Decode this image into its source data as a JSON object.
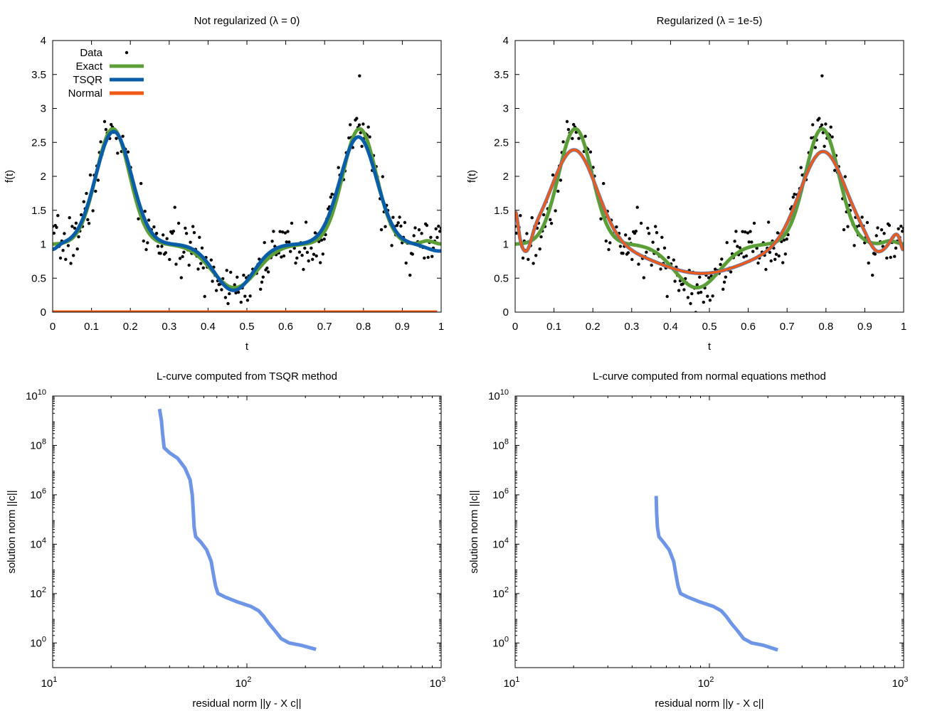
{
  "colors": {
    "data": "#000000",
    "exact": "#5c9e37",
    "tsqr": "#0a5ea8",
    "normal": "#f05a16",
    "lcurve": "#6f96e6",
    "regularized_outline": "#6878a8"
  },
  "chart_data": [
    {
      "id": "top-left",
      "type": "scatter",
      "title": "Not regularized (λ = 0)",
      "xlabel": "t",
      "ylabel": "f(t)",
      "xlim": [
        0,
        1
      ],
      "ylim": [
        0,
        4
      ],
      "xticks": [
        "0",
        "0.1",
        "0.2",
        "0.3",
        "0.4",
        "0.5",
        "0.6",
        "0.7",
        "0.8",
        "0.9",
        "1"
      ],
      "yticks": [
        "0",
        "0.5",
        "1",
        "1.5",
        "2",
        "2.5",
        "3",
        "3.5",
        "4"
      ],
      "legend": {
        "position": "top-left",
        "entries": [
          "Data",
          "Exact",
          "TSQR",
          "Normal"
        ]
      },
      "series": [
        {
          "name": "Data",
          "kind": "points",
          "model": "exact_plus_noise",
          "n": 300,
          "noise": 0.18,
          "seed": 7,
          "outlier": {
            "x": 0.79,
            "y": 3.48
          }
        },
        {
          "name": "Exact",
          "kind": "line",
          "model": "exact",
          "color_key": "exact"
        },
        {
          "name": "TSQR",
          "kind": "line",
          "model": "tsqr",
          "color_key": "tsqr"
        },
        {
          "name": "Normal",
          "kind": "line",
          "model": "zero",
          "color_key": "normal",
          "x_range": [
            0,
            0.99
          ]
        }
      ],
      "grid": false
    },
    {
      "id": "top-right",
      "type": "scatter",
      "title": "Regularized (λ = 1e-5)",
      "xlabel": "t",
      "ylabel": "f(t)",
      "xlim": [
        0,
        1
      ],
      "ylim": [
        0,
        4
      ],
      "xticks": [
        "0",
        "0.1",
        "0.2",
        "0.3",
        "0.4",
        "0.5",
        "0.6",
        "0.7",
        "0.8",
        "0.9",
        "1"
      ],
      "yticks": [
        "0",
        "0.5",
        "1",
        "1.5",
        "2",
        "2.5",
        "3",
        "3.5",
        "4"
      ],
      "series": [
        {
          "name": "Data",
          "kind": "points",
          "model": "exact_plus_noise",
          "n": 300,
          "noise": 0.18,
          "seed": 7,
          "outlier": {
            "x": 0.79,
            "y": 3.48
          }
        },
        {
          "name": "Exact",
          "kind": "line",
          "model": "exact",
          "color_key": "exact"
        },
        {
          "name": "TSQR",
          "kind": "line",
          "model": "regularized",
          "color_key": "regularized_outline"
        },
        {
          "name": "Normal",
          "kind": "line",
          "model": "regularized",
          "color_key": "normal"
        }
      ],
      "grid": false
    },
    {
      "id": "bottom-left",
      "type": "line",
      "title": "L-curve computed from TSQR method",
      "xlabel": "residual norm ||y - X c||",
      "ylabel": "solution norm ||c||",
      "xscale": "log",
      "yscale": "log",
      "xlim": [
        10,
        1000
      ],
      "ylim": [
        0.1,
        10000000000
      ],
      "xticks": [
        {
          "base": "10",
          "exp": "1"
        },
        {
          "base": "10",
          "exp": "2"
        },
        {
          "base": "10",
          "exp": "3"
        }
      ],
      "yticks": [
        {
          "base": "10",
          "exp": "0"
        },
        {
          "base": "10",
          "exp": "2"
        },
        {
          "base": "10",
          "exp": "4"
        },
        {
          "base": "10",
          "exp": "6"
        },
        {
          "base": "10",
          "exp": "8"
        },
        {
          "base": "10",
          "exp": "10"
        }
      ],
      "series": [
        {
          "name": "",
          "color_key": "lcurve",
          "points": [
            [
              35.5,
              3000000000
            ],
            [
              36.3,
              1000000000
            ],
            [
              36.8,
              300000000
            ],
            [
              37.5,
              80000000
            ],
            [
              40,
              50000000
            ],
            [
              44,
              30000000
            ],
            [
              48,
              12000000
            ],
            [
              51,
              4000000
            ],
            [
              52.3,
              1000000
            ],
            [
              53,
              200000
            ],
            [
              53.5,
              50000
            ],
            [
              54.5,
              20000
            ],
            [
              58,
              12000
            ],
            [
              62,
              6000
            ],
            [
              65.5,
              2000
            ],
            [
              67.5,
              500
            ],
            [
              69,
              200
            ],
            [
              71,
              100
            ],
            [
              78,
              70
            ],
            [
              90,
              45
            ],
            [
              105,
              30
            ],
            [
              115,
              20
            ],
            [
              122,
              12
            ],
            [
              130,
              6
            ],
            [
              140,
              3
            ],
            [
              150,
              1.5
            ],
            [
              165,
              1
            ],
            [
              190,
              0.8
            ],
            [
              227,
              0.55
            ]
          ]
        }
      ],
      "grid": false
    },
    {
      "id": "bottom-right",
      "type": "line",
      "title": "L-curve computed from normal equations method",
      "xlabel": "residual norm ||y - X c||",
      "ylabel": "solution norm ||c||",
      "xscale": "log",
      "yscale": "log",
      "xlim": [
        10,
        1000
      ],
      "ylim": [
        0.1,
        10000000000
      ],
      "xticks": [
        {
          "base": "10",
          "exp": "1"
        },
        {
          "base": "10",
          "exp": "2"
        },
        {
          "base": "10",
          "exp": "3"
        }
      ],
      "yticks": [
        {
          "base": "10",
          "exp": "0"
        },
        {
          "base": "10",
          "exp": "2"
        },
        {
          "base": "10",
          "exp": "4"
        },
        {
          "base": "10",
          "exp": "6"
        },
        {
          "base": "10",
          "exp": "8"
        },
        {
          "base": "10",
          "exp": "10"
        }
      ],
      "series": [
        {
          "name": "",
          "color_key": "lcurve",
          "points": [
            [
              53.2,
              900000
            ],
            [
              53.5,
              200000
            ],
            [
              54,
              50000
            ],
            [
              55,
              20000
            ],
            [
              58,
              12000
            ],
            [
              62,
              6000
            ],
            [
              65.5,
              2000
            ],
            [
              67.5,
              500
            ],
            [
              69,
              200
            ],
            [
              71,
              100
            ],
            [
              78,
              70
            ],
            [
              90,
              45
            ],
            [
              105,
              30
            ],
            [
              115,
              20
            ],
            [
              122,
              12
            ],
            [
              130,
              6
            ],
            [
              140,
              3
            ],
            [
              150,
              1.5
            ],
            [
              165,
              1
            ],
            [
              190,
              0.8
            ],
            [
              225,
              0.52
            ]
          ]
        }
      ],
      "grid": false
    }
  ]
}
